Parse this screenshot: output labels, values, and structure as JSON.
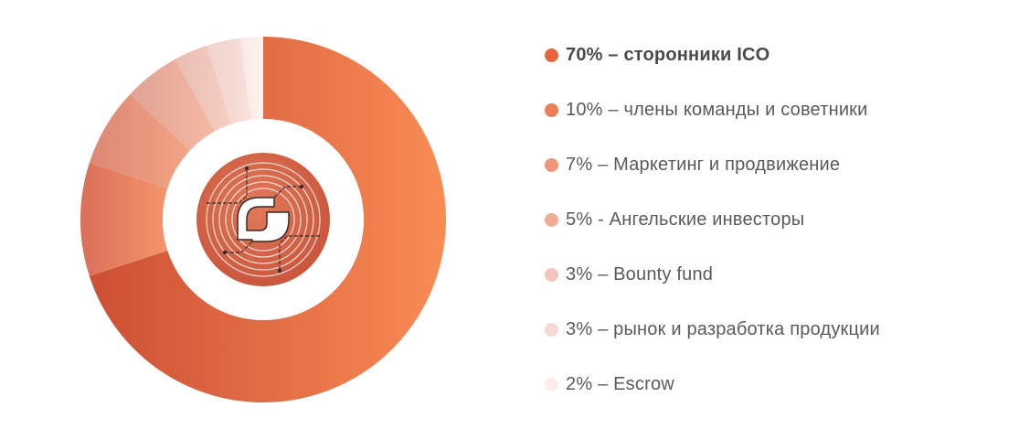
{
  "chart_data": {
    "type": "pie",
    "variant": "donut",
    "title": "",
    "slices": [
      {
        "label": "70% – сторонники ICO",
        "value": 70,
        "color": "#e8643c",
        "color_light": "#f98c55",
        "color_dark": "#cc4f35"
      },
      {
        "label": "10% – члены команды и советники",
        "value": 10,
        "color": "#ec7e58",
        "color_light": "#f4956a",
        "color_dark": "#db6e58"
      },
      {
        "label": "7% – Маркетинг и продвижение",
        "value": 7,
        "color": "#ee957a",
        "color_light": "#f3a485",
        "color_dark": "#dc8775"
      },
      {
        "label": "5% - Ангельские инвесторы",
        "value": 5,
        "color": "#f0ab96",
        "color_light": "#f5b9a4",
        "color_dark": "#e1a395"
      },
      {
        "label": "3% – Bounty fund",
        "value": 3,
        "color": "#f3c5b8",
        "color_light": "#f7cfc3",
        "color_dark": "#e8bcb3"
      },
      {
        "label": "3% – рынок и разработка продукции",
        "value": 3,
        "color": "#f6d9d2",
        "color_light": "#f9e0d9",
        "color_dark": "#efd3cd"
      },
      {
        "label": "2% – Escrow",
        "value": 2,
        "color": "#fbeeea",
        "color_light": "#fdf2ef",
        "color_dark": "#f6e8e5"
      }
    ],
    "legend_position": "right",
    "emphasized_entry": 0,
    "center_logo": "coin-logo-icon"
  }
}
